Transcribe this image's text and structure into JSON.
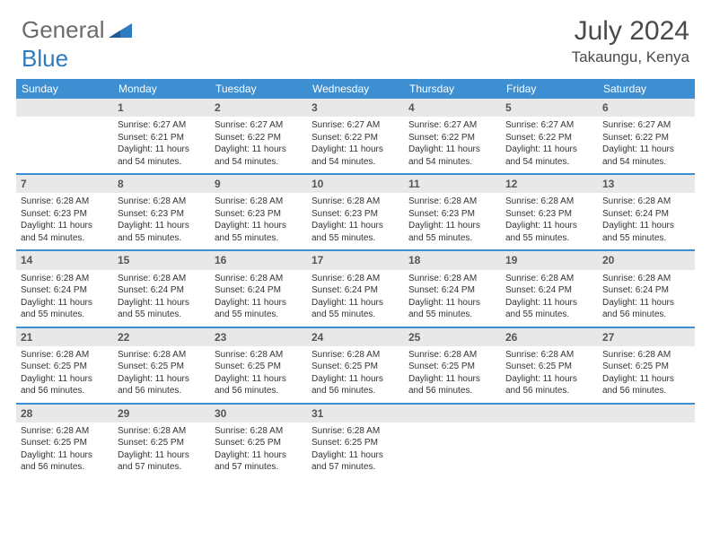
{
  "brand": {
    "text1": "General",
    "text2": "Blue",
    "color_gray": "#6b6b6b",
    "color_blue": "#2f7bbf"
  },
  "title": "July 2024",
  "location": "Takaungu, Kenya",
  "header_bg": "#3d8fd1",
  "daynum_bg": "#e8e8e8",
  "weekdays": [
    "Sunday",
    "Monday",
    "Tuesday",
    "Wednesday",
    "Thursday",
    "Friday",
    "Saturday"
  ],
  "weeks": [
    [
      null,
      {
        "n": "1",
        "sr": "Sunrise: 6:27 AM",
        "ss": "Sunset: 6:21 PM",
        "dl": "Daylight: 11 hours and 54 minutes."
      },
      {
        "n": "2",
        "sr": "Sunrise: 6:27 AM",
        "ss": "Sunset: 6:22 PM",
        "dl": "Daylight: 11 hours and 54 minutes."
      },
      {
        "n": "3",
        "sr": "Sunrise: 6:27 AM",
        "ss": "Sunset: 6:22 PM",
        "dl": "Daylight: 11 hours and 54 minutes."
      },
      {
        "n": "4",
        "sr": "Sunrise: 6:27 AM",
        "ss": "Sunset: 6:22 PM",
        "dl": "Daylight: 11 hours and 54 minutes."
      },
      {
        "n": "5",
        "sr": "Sunrise: 6:27 AM",
        "ss": "Sunset: 6:22 PM",
        "dl": "Daylight: 11 hours and 54 minutes."
      },
      {
        "n": "6",
        "sr": "Sunrise: 6:27 AM",
        "ss": "Sunset: 6:22 PM",
        "dl": "Daylight: 11 hours and 54 minutes."
      }
    ],
    [
      {
        "n": "7",
        "sr": "Sunrise: 6:28 AM",
        "ss": "Sunset: 6:23 PM",
        "dl": "Daylight: 11 hours and 54 minutes."
      },
      {
        "n": "8",
        "sr": "Sunrise: 6:28 AM",
        "ss": "Sunset: 6:23 PM",
        "dl": "Daylight: 11 hours and 55 minutes."
      },
      {
        "n": "9",
        "sr": "Sunrise: 6:28 AM",
        "ss": "Sunset: 6:23 PM",
        "dl": "Daylight: 11 hours and 55 minutes."
      },
      {
        "n": "10",
        "sr": "Sunrise: 6:28 AM",
        "ss": "Sunset: 6:23 PM",
        "dl": "Daylight: 11 hours and 55 minutes."
      },
      {
        "n": "11",
        "sr": "Sunrise: 6:28 AM",
        "ss": "Sunset: 6:23 PM",
        "dl": "Daylight: 11 hours and 55 minutes."
      },
      {
        "n": "12",
        "sr": "Sunrise: 6:28 AM",
        "ss": "Sunset: 6:23 PM",
        "dl": "Daylight: 11 hours and 55 minutes."
      },
      {
        "n": "13",
        "sr": "Sunrise: 6:28 AM",
        "ss": "Sunset: 6:24 PM",
        "dl": "Daylight: 11 hours and 55 minutes."
      }
    ],
    [
      {
        "n": "14",
        "sr": "Sunrise: 6:28 AM",
        "ss": "Sunset: 6:24 PM",
        "dl": "Daylight: 11 hours and 55 minutes."
      },
      {
        "n": "15",
        "sr": "Sunrise: 6:28 AM",
        "ss": "Sunset: 6:24 PM",
        "dl": "Daylight: 11 hours and 55 minutes."
      },
      {
        "n": "16",
        "sr": "Sunrise: 6:28 AM",
        "ss": "Sunset: 6:24 PM",
        "dl": "Daylight: 11 hours and 55 minutes."
      },
      {
        "n": "17",
        "sr": "Sunrise: 6:28 AM",
        "ss": "Sunset: 6:24 PM",
        "dl": "Daylight: 11 hours and 55 minutes."
      },
      {
        "n": "18",
        "sr": "Sunrise: 6:28 AM",
        "ss": "Sunset: 6:24 PM",
        "dl": "Daylight: 11 hours and 55 minutes."
      },
      {
        "n": "19",
        "sr": "Sunrise: 6:28 AM",
        "ss": "Sunset: 6:24 PM",
        "dl": "Daylight: 11 hours and 55 minutes."
      },
      {
        "n": "20",
        "sr": "Sunrise: 6:28 AM",
        "ss": "Sunset: 6:24 PM",
        "dl": "Daylight: 11 hours and 56 minutes."
      }
    ],
    [
      {
        "n": "21",
        "sr": "Sunrise: 6:28 AM",
        "ss": "Sunset: 6:25 PM",
        "dl": "Daylight: 11 hours and 56 minutes."
      },
      {
        "n": "22",
        "sr": "Sunrise: 6:28 AM",
        "ss": "Sunset: 6:25 PM",
        "dl": "Daylight: 11 hours and 56 minutes."
      },
      {
        "n": "23",
        "sr": "Sunrise: 6:28 AM",
        "ss": "Sunset: 6:25 PM",
        "dl": "Daylight: 11 hours and 56 minutes."
      },
      {
        "n": "24",
        "sr": "Sunrise: 6:28 AM",
        "ss": "Sunset: 6:25 PM",
        "dl": "Daylight: 11 hours and 56 minutes."
      },
      {
        "n": "25",
        "sr": "Sunrise: 6:28 AM",
        "ss": "Sunset: 6:25 PM",
        "dl": "Daylight: 11 hours and 56 minutes."
      },
      {
        "n": "26",
        "sr": "Sunrise: 6:28 AM",
        "ss": "Sunset: 6:25 PM",
        "dl": "Daylight: 11 hours and 56 minutes."
      },
      {
        "n": "27",
        "sr": "Sunrise: 6:28 AM",
        "ss": "Sunset: 6:25 PM",
        "dl": "Daylight: 11 hours and 56 minutes."
      }
    ],
    [
      {
        "n": "28",
        "sr": "Sunrise: 6:28 AM",
        "ss": "Sunset: 6:25 PM",
        "dl": "Daylight: 11 hours and 56 minutes."
      },
      {
        "n": "29",
        "sr": "Sunrise: 6:28 AM",
        "ss": "Sunset: 6:25 PM",
        "dl": "Daylight: 11 hours and 57 minutes."
      },
      {
        "n": "30",
        "sr": "Sunrise: 6:28 AM",
        "ss": "Sunset: 6:25 PM",
        "dl": "Daylight: 11 hours and 57 minutes."
      },
      {
        "n": "31",
        "sr": "Sunrise: 6:28 AM",
        "ss": "Sunset: 6:25 PM",
        "dl": "Daylight: 11 hours and 57 minutes."
      },
      null,
      null,
      null
    ]
  ]
}
